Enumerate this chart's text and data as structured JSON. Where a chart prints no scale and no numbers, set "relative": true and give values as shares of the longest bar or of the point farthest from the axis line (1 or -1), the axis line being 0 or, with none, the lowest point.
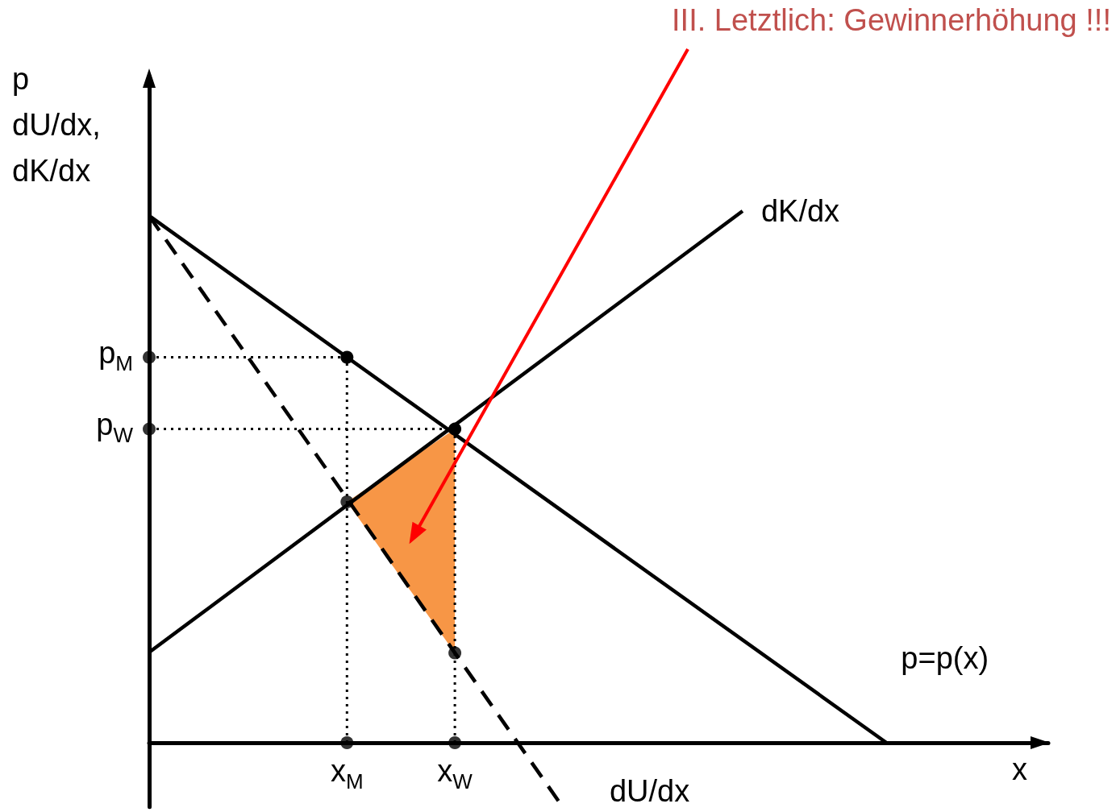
{
  "chart_data": {
    "type": "line",
    "relative": true,
    "xlabel": "x",
    "ylabel": "p\ndU/dx,\ndK/dx",
    "grid": false,
    "legend": false,
    "categories": [
      null,
      null,
      null,
      null,
      null,
      null,
      null,
      null,
      null,
      null,
      null,
      "x$_{M}$",
      null,
      null,
      null,
      null,
      null,
      "x$_{W}$",
      null,
      null,
      null,
      null,
      null,
      null,
      null,
      null,
      null,
      null,
      null,
      null,
      null,
      null,
      null,
      null,
      null,
      null,
      null,
      null,
      null,
      null,
      null,
      null,
      null,
      null,
      null,
      null,
      null,
      null,
      null,
      null,
      null
    ],
    "annotations": [
      "III. Letztlich: Gewinnerhöhung !!!",
      "p$_{M}$",
      "p$_{W}$"
    ],
    "series": [
      {
        "name": "p=p(x)",
        "color": "#000000",
        "line_style": "solid",
        "marker": "none",
        "values": [
          0.991,
          null,
          null,
          null,
          null,
          null,
          null,
          null,
          null,
          null,
          null,
          null,
          null,
          null,
          null,
          null,
          null,
          null,
          null,
          null,
          null,
          null,
          null,
          null,
          null,
          null,
          null,
          null,
          null,
          null,
          null,
          null,
          null,
          null,
          null,
          null,
          null,
          null,
          null,
          null,
          null,
          0,
          null,
          null,
          null,
          null,
          null,
          null,
          null,
          null,
          null
        ]
      },
      {
        "name": "dU/dx",
        "color": "#000000",
        "line_style": "dashed",
        "marker": "none",
        "values": [
          0.991,
          null,
          null,
          null,
          null,
          null,
          null,
          null,
          null,
          null,
          null,
          null,
          null,
          null,
          null,
          null,
          null,
          null,
          null,
          null,
          null,
          null,
          null,
          -0.121,
          null,
          null,
          null,
          null,
          null,
          null,
          null,
          null,
          null,
          null,
          null,
          null,
          null,
          null,
          null,
          null,
          null,
          null,
          null,
          null,
          null,
          null,
          null,
          null,
          null,
          null,
          null
        ]
      },
      {
        "name": "dK/dx",
        "color": "#000000",
        "line_style": "solid",
        "marker": "none",
        "values": [
          0.17,
          null,
          null,
          null,
          null,
          null,
          null,
          null,
          null,
          null,
          null,
          null,
          null,
          null,
          null,
          null,
          null,
          null,
          null,
          null,
          null,
          null,
          null,
          null,
          null,
          null,
          null,
          null,
          null,
          null,
          null,
          null,
          null,
          1.0,
          null,
          null,
          null,
          null,
          null,
          null,
          null,
          null,
          null,
          null,
          null,
          null,
          null,
          null,
          null,
          null,
          null
        ]
      },
      {
        "color": "#000000",
        "line_style": "dotted",
        "marker": "none",
        "values": [
          0.725,
          null,
          null,
          null,
          null,
          null,
          null,
          null,
          null,
          null,
          null,
          0.725,
          null,
          null,
          null,
          null,
          null,
          null,
          null,
          null,
          null,
          null,
          null,
          null,
          null,
          null,
          null,
          null,
          null,
          null,
          null,
          null,
          null,
          null,
          null,
          null,
          null,
          null,
          null,
          null,
          null,
          null,
          null,
          null,
          null,
          null,
          null,
          null,
          null,
          null,
          null
        ]
      },
      {
        "color": "#000000",
        "line_style": "dotted",
        "marker": "none",
        "values": [
          0.59,
          null,
          null,
          null,
          null,
          null,
          null,
          null,
          null,
          null,
          null,
          null,
          null,
          null,
          null,
          null,
          null,
          0.59,
          null,
          null,
          null,
          null,
          null,
          null,
          null,
          null,
          null,
          null,
          null,
          null,
          null,
          null,
          null,
          null,
          null,
          null,
          null,
          null,
          null,
          null,
          null,
          null,
          null,
          null,
          null,
          null,
          null,
          null,
          null,
          null,
          null
        ]
      },
      {
        "type": "lollipop",
        "color": "#000000",
        "line_style": "dotted",
        "marker": "circle",
        "values": [
          null,
          null,
          null,
          null,
          null,
          null,
          null,
          null,
          null,
          null,
          null,
          0.725,
          null,
          null,
          null,
          null,
          null,
          0.59,
          null,
          null,
          null,
          null,
          null,
          null,
          null,
          null,
          null,
          null,
          null,
          null,
          null,
          null,
          null,
          null,
          null,
          null,
          null,
          null,
          null,
          null,
          null,
          null,
          null,
          null,
          null,
          null,
          null,
          null,
          null,
          null,
          null
        ]
      },
      {
        "type": "area",
        "color": "#f79646",
        "x": [
          "x$_{M}$",
          "x$_{W}$",
          "x$_{W}$"
        ],
        "values": [
          0.453,
          0.59,
          0.169
        ]
      },
      {
        "type": "scatter",
        "color": "#000000",
        "marker": "circle",
        "values": [
          0.725,
          null,
          null,
          null,
          null,
          null,
          null,
          null,
          null,
          null,
          null,
          0.453,
          null,
          null,
          null,
          null,
          null,
          0.169,
          null,
          null,
          null,
          null,
          null,
          null,
          null,
          null,
          null,
          null,
          null,
          null,
          null,
          null,
          null,
          null,
          null,
          null,
          null,
          null,
          null,
          null,
          null,
          null,
          null,
          null,
          null,
          null,
          null,
          null,
          null,
          null,
          null
        ]
      },
      {
        "type": "scatter",
        "color": "#000000",
        "marker": "circle",
        "values": [
          0.59,
          null,
          null,
          null,
          null,
          null,
          null,
          null,
          null,
          null,
          null,
          0,
          null,
          null,
          null,
          null,
          null,
          0,
          null,
          null,
          null,
          null,
          null,
          null,
          null,
          null,
          null,
          null,
          null,
          null,
          null,
          null,
          null,
          null,
          null,
          null,
          null,
          null,
          null,
          null,
          null,
          null,
          null,
          null,
          null,
          null,
          null,
          null,
          null,
          null,
          null
        ]
      }
    ]
  }
}
